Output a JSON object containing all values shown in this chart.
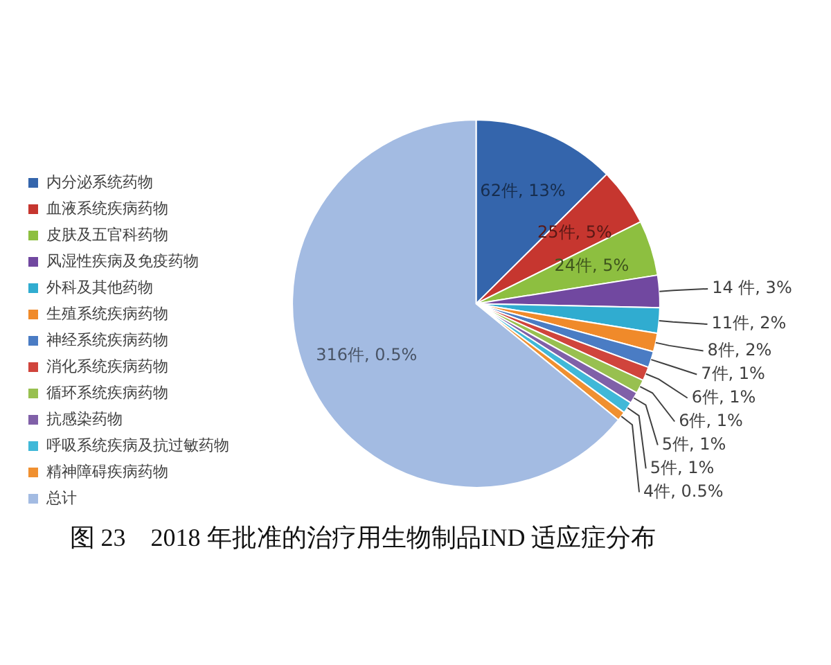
{
  "chart_data": {
    "type": "pie",
    "title": "图 23　2018 年批准的治疗用生物制品IND 适应症分布",
    "categories": [
      "内分泌系统药物",
      "血液系统疾病药物",
      "皮肤及五官科药物",
      "风湿性疾病及免疫药物",
      "外科及其他药物",
      "生殖系统疾病药物",
      "神经系统疾病药物",
      "消化系统疾病药物",
      "循环系统疾病药物",
      "抗感染药物",
      "呼吸系统疾病及抗过敏药物",
      "精神障碍疾病药物",
      "总计"
    ],
    "values": [
      62,
      25,
      24,
      14,
      11,
      8,
      7,
      6,
      6,
      5,
      5,
      4,
      316
    ],
    "value_labels": [
      "62件, 13%",
      "25件, 5%",
      "24件, 5%",
      "14 件, 3%",
      "11件, 2%",
      "8件, 2%",
      "7件, 1%",
      "6件, 1%",
      "6件, 1%",
      "5件, 1%",
      "5件, 1%",
      "4件, 0.5%",
      "316件, 0.5%"
    ],
    "colors": [
      "#3465ac",
      "#c6362f",
      "#8dbf40",
      "#7148a0",
      "#30acd0",
      "#f08a2a",
      "#4a7cc4",
      "#d0443c",
      "#98c050",
      "#8060a8",
      "#40b8d8",
      "#f09030",
      "#a3bbe2"
    ],
    "legend": "left"
  }
}
